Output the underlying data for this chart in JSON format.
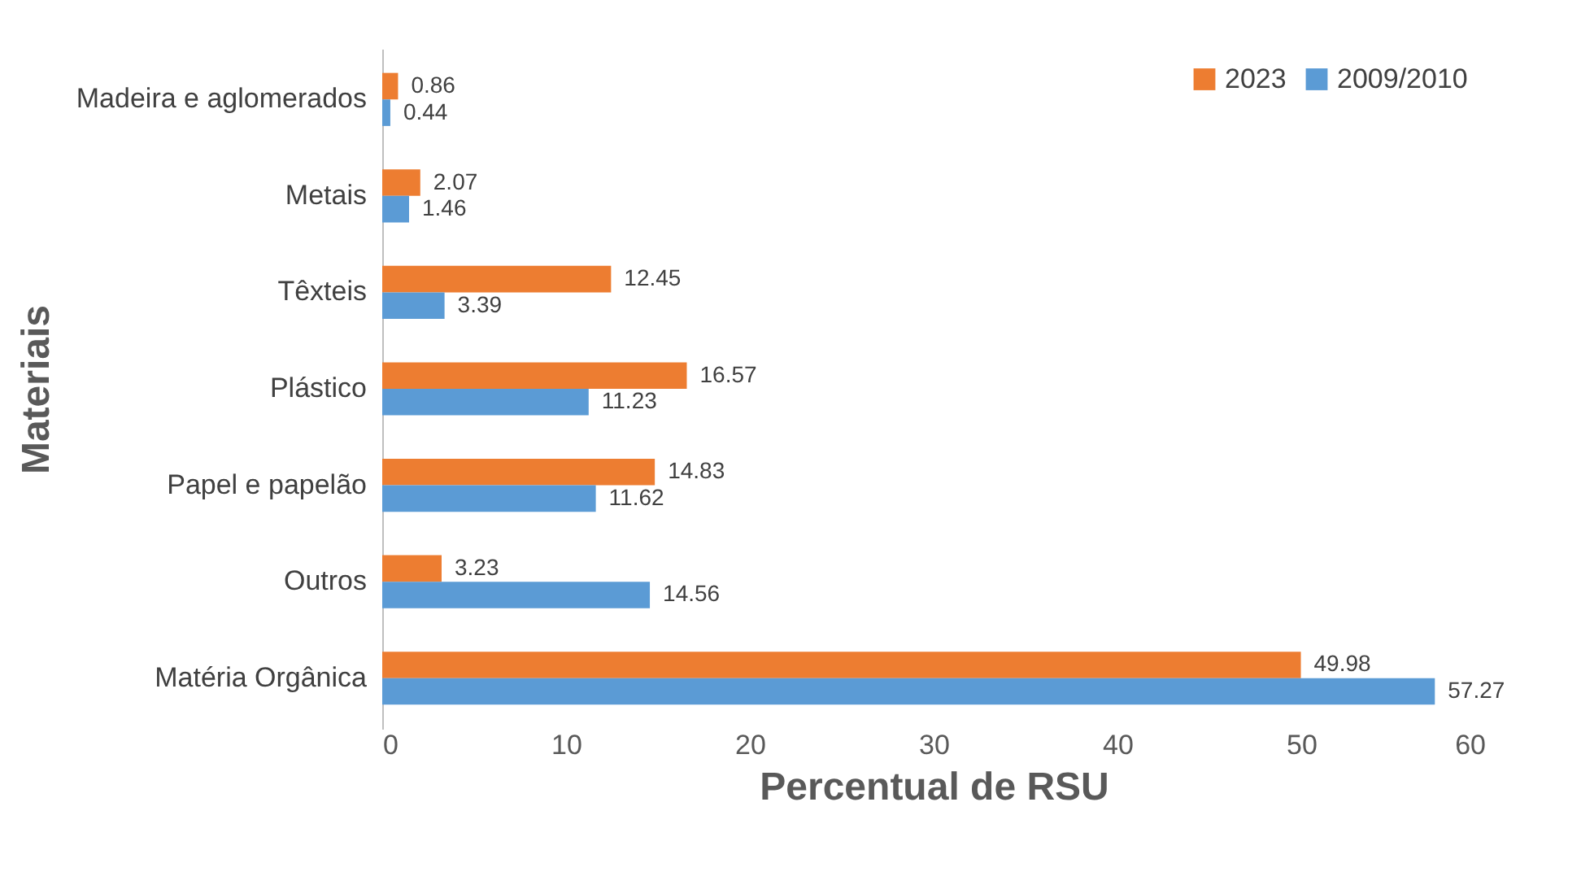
{
  "chart_data": {
    "type": "bar",
    "orientation": "horizontal",
    "xlabel": "Percentual de RSU",
    "ylabel": "Materiais",
    "categories": [
      "Madeira e aglomerados",
      "Metais",
      "Têxteis",
      "Plástico",
      "Papel e papelão",
      "Outros",
      "Matéria Orgânica"
    ],
    "series": [
      {
        "name": "2023",
        "color": "#ed7d31",
        "values": [
          0.86,
          2.07,
          12.45,
          16.57,
          14.83,
          3.23,
          49.98
        ]
      },
      {
        "name": "2009/2010",
        "color": "#5b9bd5",
        "values": [
          0.44,
          1.46,
          3.39,
          11.23,
          11.62,
          14.56,
          57.27
        ]
      }
    ],
    "xlim": [
      0,
      60
    ],
    "xticks": [
      0,
      10,
      20,
      30,
      40,
      50,
      60
    ],
    "data_labels": true,
    "legend": "top right",
    "grid": false
  }
}
